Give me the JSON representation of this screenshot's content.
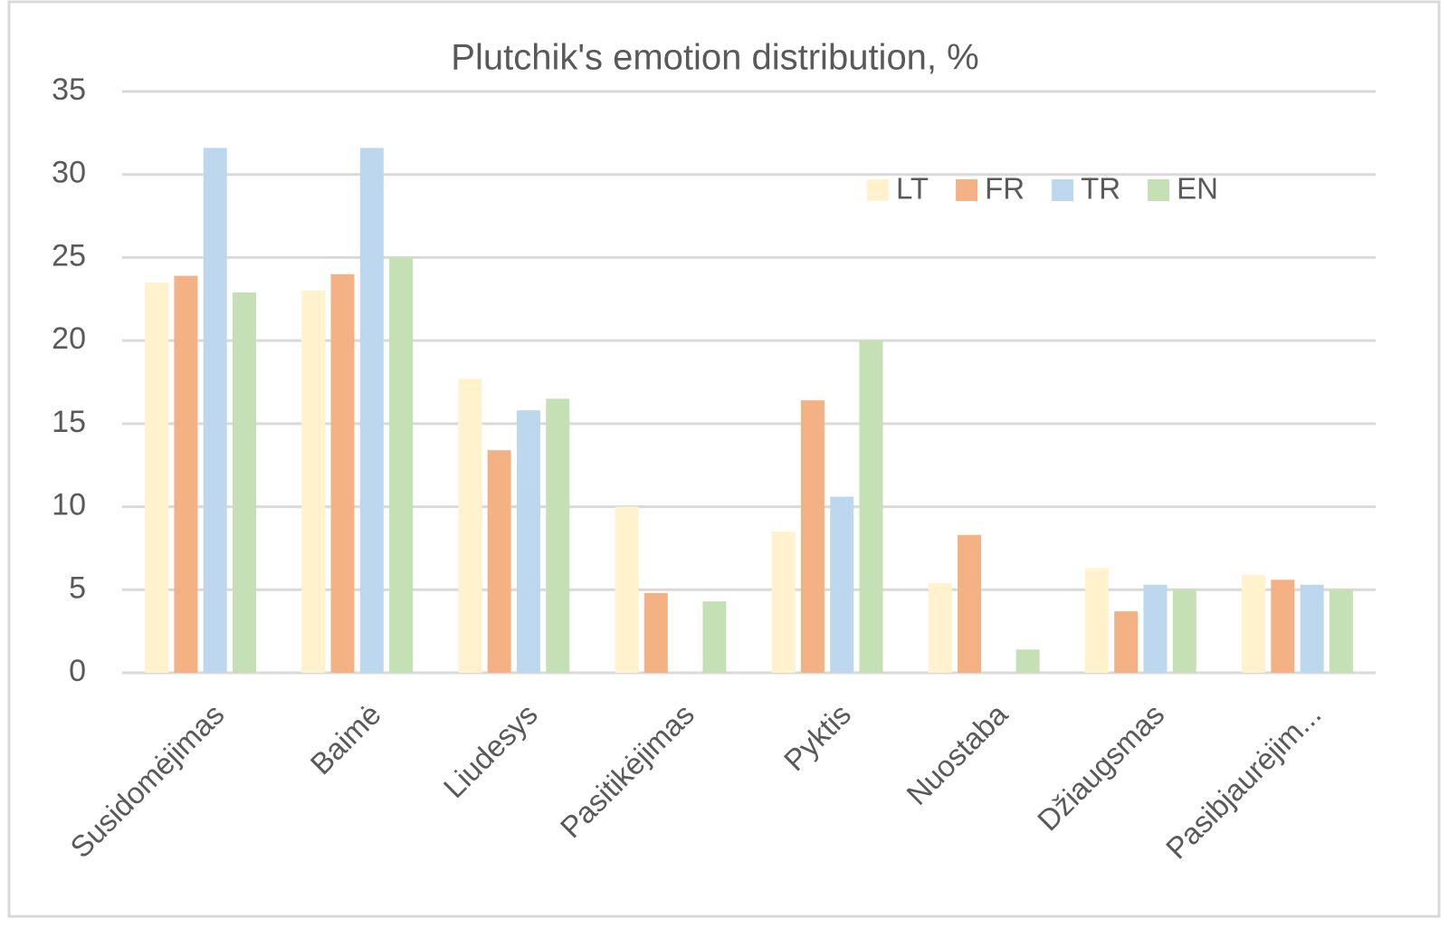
{
  "chart_data": {
    "type": "bar",
    "title": "Plutchik's emotion distribution, %",
    "categories": [
      "Susidomėjimas",
      "Baimė",
      "Liudesys",
      "Pasitikėjimas",
      "Pyktis",
      "Nuostaba",
      "Džiaugsmas",
      "Pasibjaurėjim..."
    ],
    "series": [
      {
        "name": "LT",
        "color": "#fff2cc",
        "values": [
          23.5,
          23,
          17.7,
          10,
          8.5,
          5.4,
          6.3,
          5.9
        ]
      },
      {
        "name": "FR",
        "color": "#f4b183",
        "values": [
          23.9,
          24,
          13.4,
          4.8,
          16.4,
          8.3,
          3.7,
          5.6
        ]
      },
      {
        "name": "TR",
        "color": "#bdd7ee",
        "values": [
          31.6,
          31.6,
          15.8,
          0,
          10.6,
          0,
          5.3,
          5.3
        ]
      },
      {
        "name": "EN",
        "color": "#c5e0b4",
        "values": [
          22.9,
          25,
          16.5,
          4.3,
          20,
          1.4,
          5,
          5
        ]
      }
    ],
    "ylim": [
      0,
      35
    ],
    "yticks": [
      0,
      5,
      10,
      15,
      20,
      25,
      30,
      35
    ],
    "grid": true,
    "legend": "top-right"
  }
}
